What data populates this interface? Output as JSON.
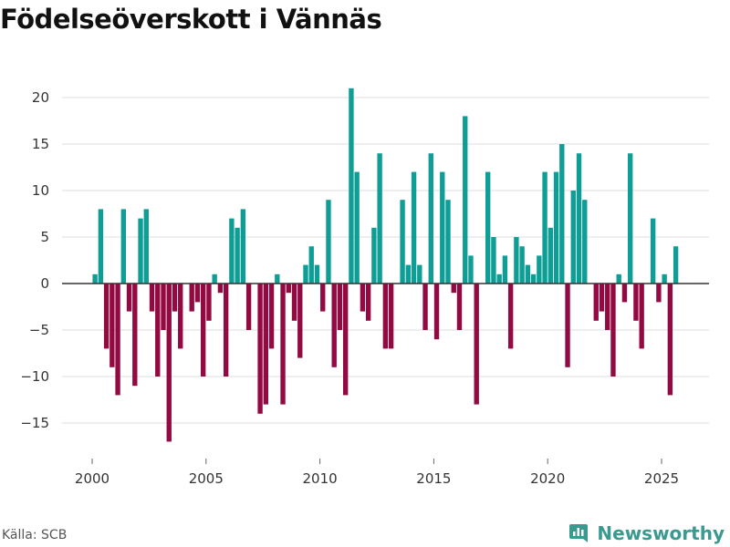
{
  "title": "Födelseöverskott i Vännäs",
  "source": "Källa: SCB",
  "brand": "Newsworthy",
  "colors": {
    "positive": "#0e9e96",
    "negative": "#930a43",
    "grid": "#dddddd",
    "zero": "#333333",
    "brand": "#3a9a8f"
  },
  "chart_data": {
    "type": "bar",
    "title": "Födelseöverskott i Vännäs",
    "xlabel": "",
    "ylabel": "",
    "grid": true,
    "ylim": [
      -18,
      22
    ],
    "yticks": [
      20,
      15,
      10,
      5,
      0,
      -5,
      -10,
      -15
    ],
    "ytick_labels": [
      "20",
      "15",
      "10",
      "5",
      "0",
      "−5",
      "−10",
      "−15"
    ],
    "xticks": [
      2000,
      2005,
      2010,
      2015,
      2020,
      2025
    ],
    "xtick_labels": [
      "2000",
      "2005",
      "2010",
      "2015",
      "2020",
      "2025"
    ],
    "x_start": 2000.125,
    "x_step": 0.25,
    "frequency": "quarterly",
    "values": [
      1,
      8,
      -7,
      -9,
      -12,
      8,
      -3,
      -11,
      7,
      8,
      -3,
      -10,
      -5,
      -17,
      -3,
      -7,
      0,
      -3,
      -2,
      -10,
      -4,
      1,
      -1,
      -10,
      7,
      6,
      8,
      -5,
      0,
      -14,
      -13,
      -7,
      1,
      -13,
      -1,
      -4,
      -8,
      2,
      4,
      2,
      -3,
      9,
      -9,
      -5,
      -12,
      21,
      12,
      -3,
      -4,
      6,
      14,
      -7,
      -7,
      0,
      9,
      2,
      12,
      2,
      -5,
      14,
      -6,
      12,
      9,
      -1,
      -5,
      18,
      3,
      -13,
      0,
      12,
      5,
      1,
      3,
      -7,
      5,
      4,
      2,
      1,
      3,
      12,
      6,
      12,
      15,
      -9,
      10,
      14,
      9,
      0,
      -4,
      -3,
      -5,
      -10,
      1,
      -2,
      14,
      -4,
      -7,
      0,
      7,
      -2,
      1,
      -12,
      4
    ]
  }
}
